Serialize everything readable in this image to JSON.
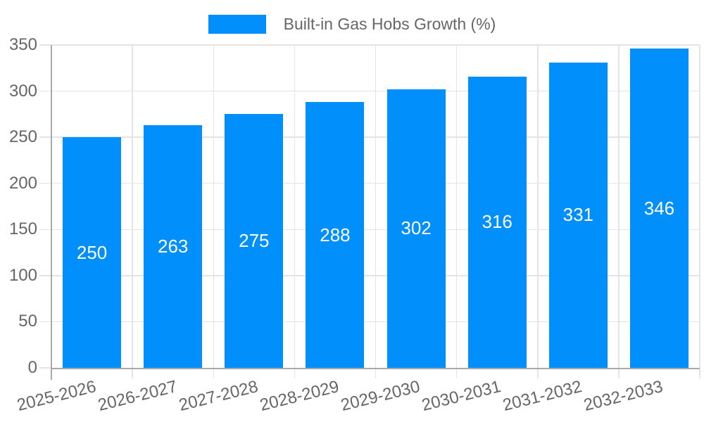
{
  "legend": {
    "label": "Built-in Gas Hobs Growth (%)"
  },
  "chart_data": {
    "type": "bar",
    "title": "Built-in Gas Hobs Growth (%)",
    "series_name": "Built-in Gas Hobs Growth (%)",
    "categories": [
      "2025-2026",
      "2026-2027",
      "2027-2028",
      "2028-2029",
      "2029-2030",
      "2030-2031",
      "2031-2032",
      "2032-2033"
    ],
    "values": [
      250,
      263,
      275,
      288,
      302,
      316,
      331,
      346
    ],
    "xlabel": "",
    "ylabel": "",
    "ylim": [
      0,
      350
    ],
    "ytick_step": 50,
    "yticks": [
      0,
      50,
      100,
      150,
      200,
      250,
      300,
      350
    ],
    "grid": true,
    "legend_position": "top",
    "colors": {
      "bar": "#008FFB",
      "value_label": "#ffffff",
      "axis_text": "#666666",
      "grid_line": "#e4e4e4",
      "axis_line": "#a9a9a9"
    }
  }
}
